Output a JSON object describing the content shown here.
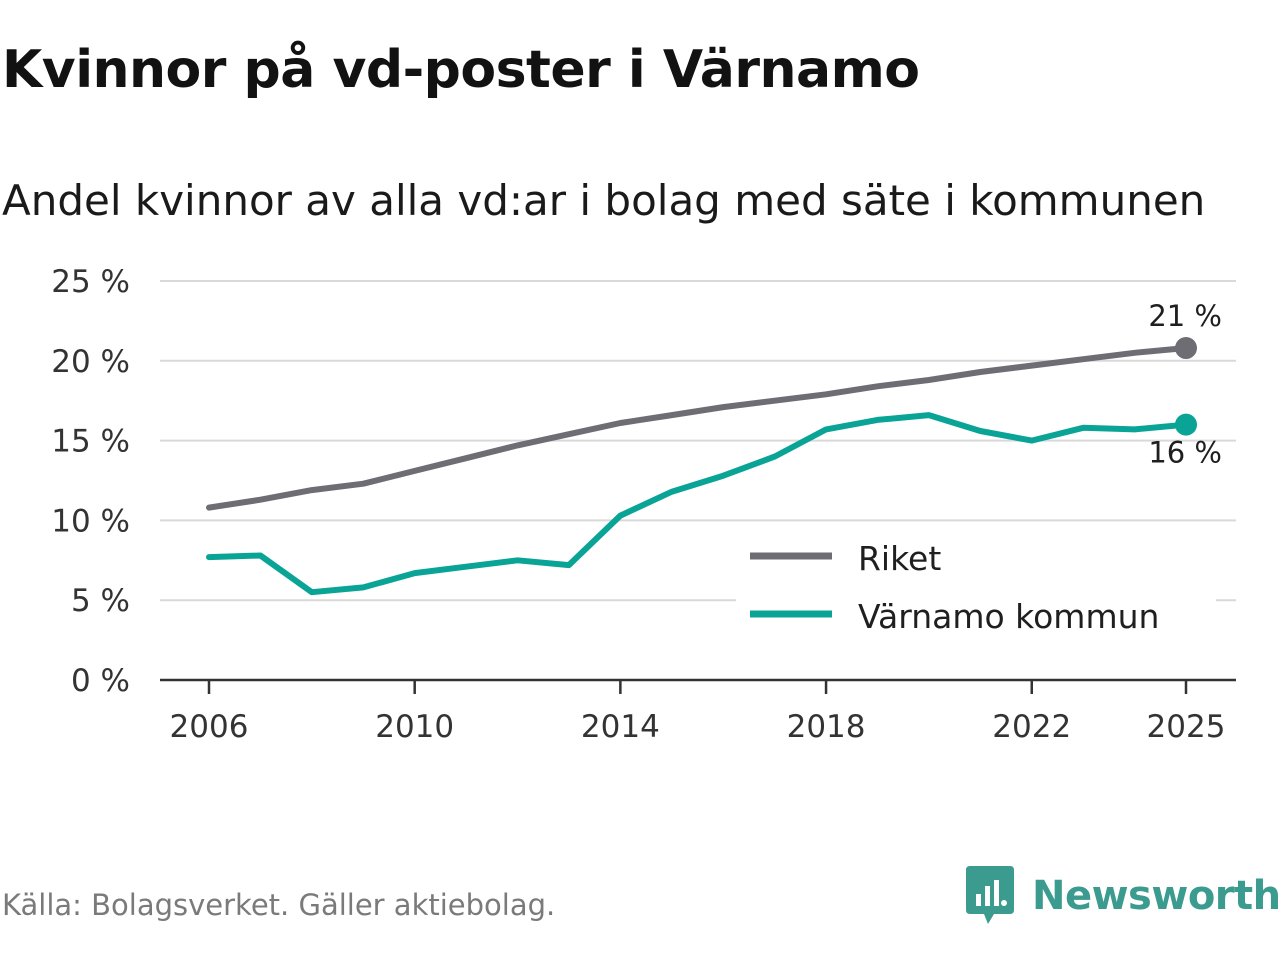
{
  "chart_data": {
    "type": "line",
    "title": "Kvinnor på vd-poster i Värnamo",
    "subtitle": "Andel kvinnor av alla vd:ar i bolag med säte i kommunen",
    "xlabel": "",
    "ylabel": "",
    "x": [
      2006,
      2007,
      2008,
      2009,
      2010,
      2011,
      2012,
      2013,
      2014,
      2015,
      2016,
      2017,
      2018,
      2019,
      2020,
      2021,
      2022,
      2023,
      2024,
      2025
    ],
    "x_ticks": [
      "2006",
      "2010",
      "2014",
      "2018",
      "2022",
      "2025"
    ],
    "y_ticks": [
      "0 %",
      "5 %",
      "10 %",
      "15 %",
      "20 %",
      "25 %"
    ],
    "ylim": [
      0,
      25
    ],
    "grid": true,
    "legend_position": "bottom-right",
    "series": [
      {
        "name": "Riket",
        "color": "#6e6d74",
        "values": [
          10.8,
          11.3,
          11.9,
          12.3,
          13.1,
          13.9,
          14.7,
          15.4,
          16.1,
          16.6,
          17.1,
          17.5,
          17.9,
          18.4,
          18.8,
          19.3,
          19.7,
          20.1,
          20.5,
          20.8
        ],
        "end_label": "21 %"
      },
      {
        "name": "Värnamo kommun",
        "color": "#0aa497",
        "values": [
          7.7,
          7.8,
          5.5,
          5.8,
          6.7,
          7.1,
          7.5,
          7.2,
          10.3,
          11.8,
          12.8,
          14.0,
          15.7,
          16.3,
          16.6,
          15.6,
          15.0,
          15.8,
          15.7,
          16.0
        ],
        "end_label": "16 %"
      }
    ]
  },
  "footer": {
    "source": "Källa: Bolagsverket. Gäller aktiebolag.",
    "brand": "Newsworthy",
    "brand_icon": "newsworthy-logo-icon",
    "brand_color": "#3a9b8e"
  }
}
